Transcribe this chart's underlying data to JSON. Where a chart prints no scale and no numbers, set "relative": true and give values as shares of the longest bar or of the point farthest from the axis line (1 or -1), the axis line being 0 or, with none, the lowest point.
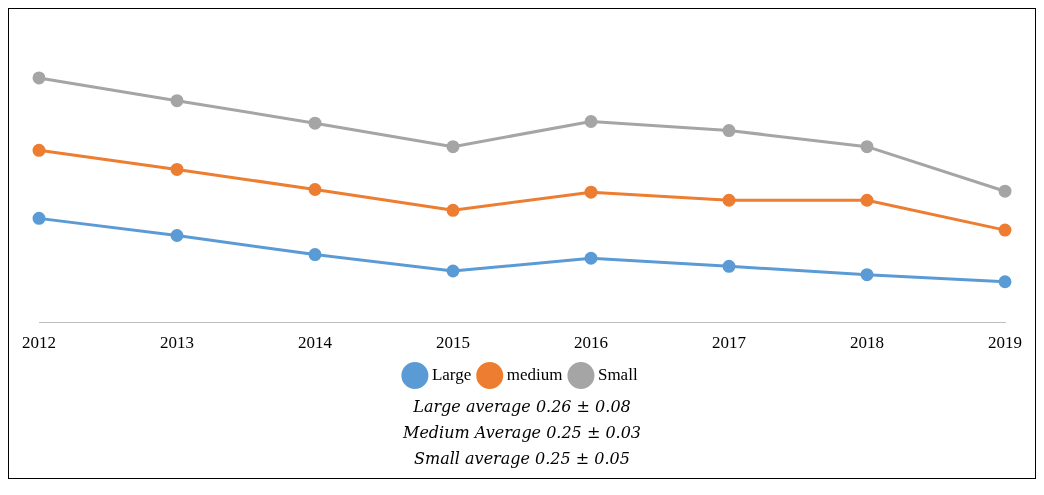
{
  "chart_data": {
    "type": "line",
    "relative": true,
    "categories": [
      "2012",
      "2013",
      "2014",
      "2015",
      "2016",
      "2017",
      "2018",
      "2019"
    ],
    "series": [
      {
        "name": "Large",
        "color": "#5b9bd5",
        "values": [
          0.426,
          0.356,
          0.278,
          0.211,
          0.263,
          0.23,
          0.196,
          0.167
        ]
      },
      {
        "name": "medium",
        "color": "#ed7d31",
        "values": [
          0.704,
          0.626,
          0.544,
          0.459,
          0.533,
          0.5,
          0.5,
          0.378
        ]
      },
      {
        "name": "Small",
        "color": "#a5a5a5",
        "values": [
          1,
          0.907,
          0.815,
          0.719,
          0.822,
          0.785,
          0.719,
          0.537
        ]
      }
    ],
    "legend": "bottom",
    "marker": "circle",
    "grid": false,
    "annotations": [
      "Large average 0.26 ± 0.08",
      "Medium Average 0.25 ± 0.03",
      "Small average 0.25 ± 0.05"
    ]
  }
}
